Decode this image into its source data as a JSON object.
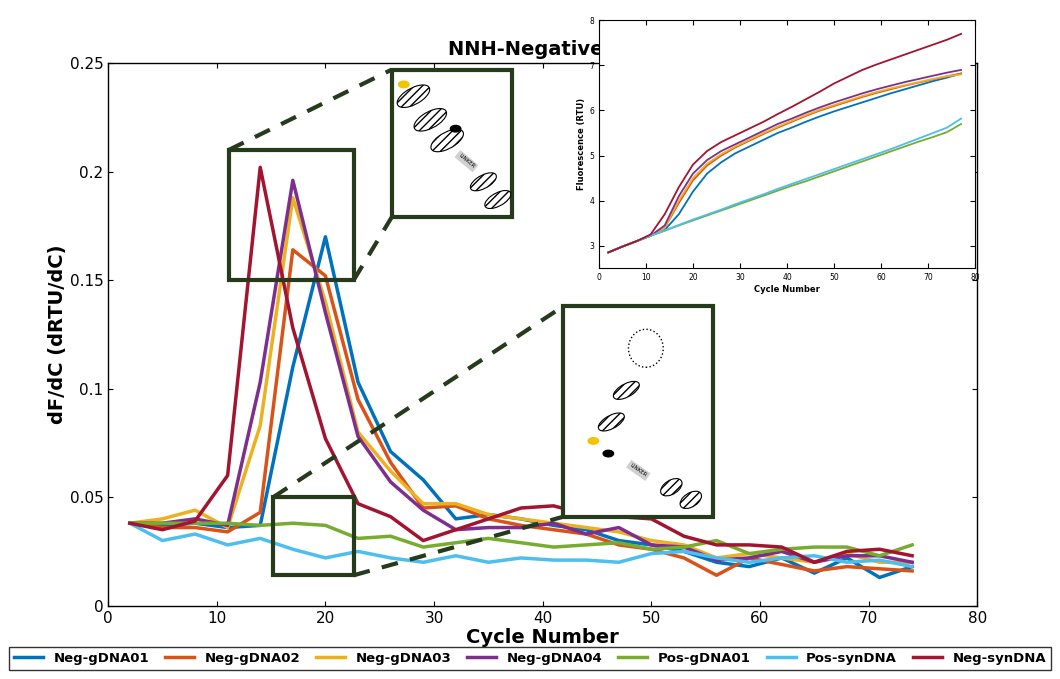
{
  "chart_data": [
    {
      "type": "line",
      "title": "NNH-Negative TP",
      "x_label": "Cycle Number",
      "y_label": "dF/dC (dRTU/dC)",
      "x": [
        2,
        5,
        8,
        11,
        14,
        17,
        20,
        23,
        26,
        29,
        32,
        35,
        38,
        41,
        44,
        47,
        50,
        53,
        56,
        59,
        62,
        65,
        68,
        71,
        74
      ],
      "xlim": [
        0,
        80
      ],
      "xticks": [
        0,
        10,
        20,
        30,
        40,
        50,
        60,
        70,
        80
      ],
      "ylim": [
        0,
        0.25
      ],
      "yticks": [
        0,
        0.05,
        0.1,
        0.15,
        0.2,
        0.25
      ],
      "grid": false,
      "legend": "lower center",
      "annotations": [
        "LINKER",
        "LINKER"
      ],
      "series": [
        {
          "name": "Neg-gDNA01",
          "color": "#0072BD",
          "values": [
            0.038,
            0.037,
            0.038,
            0.036,
            0.037,
            0.11,
            0.17,
            0.103,
            0.071,
            0.058,
            0.04,
            0.042,
            0.04,
            0.037,
            0.035,
            0.03,
            0.028,
            0.025,
            0.02,
            0.018,
            0.022,
            0.015,
            0.022,
            0.013,
            0.018
          ]
        },
        {
          "name": "Neg-gDNA02",
          "color": "#D95319",
          "values": [
            0.038,
            0.036,
            0.036,
            0.034,
            0.043,
            0.164,
            0.152,
            0.095,
            0.066,
            0.045,
            0.046,
            0.04,
            0.037,
            0.035,
            0.033,
            0.028,
            0.026,
            0.022,
            0.014,
            0.022,
            0.019,
            0.016,
            0.018,
            0.017,
            0.016
          ]
        },
        {
          "name": "Neg-gDNA03",
          "color": "#EDB120",
          "values": [
            0.038,
            0.04,
            0.044,
            0.036,
            0.083,
            0.188,
            0.14,
            0.08,
            0.062,
            0.047,
            0.047,
            0.042,
            0.04,
            0.038,
            0.036,
            0.034,
            0.03,
            0.028,
            0.022,
            0.024,
            0.022,
            0.02,
            0.024,
            0.02,
            0.02
          ]
        },
        {
          "name": "Neg-gDNA04",
          "color": "#7E2F8E",
          "values": [
            0.038,
            0.038,
            0.04,
            0.037,
            0.103,
            0.196,
            0.135,
            0.078,
            0.057,
            0.044,
            0.035,
            0.036,
            0.036,
            0.038,
            0.033,
            0.036,
            0.028,
            0.027,
            0.021,
            0.022,
            0.025,
            0.02,
            0.023,
            0.023,
            0.02
          ]
        },
        {
          "name": "Pos-gDNA01",
          "color": "#77AC30",
          "values": [
            0.038,
            0.038,
            0.038,
            0.038,
            0.037,
            0.038,
            0.037,
            0.031,
            0.032,
            0.027,
            0.029,
            0.031,
            0.029,
            0.027,
            0.028,
            0.029,
            0.026,
            0.027,
            0.03,
            0.024,
            0.026,
            0.027,
            0.027,
            0.023,
            0.028
          ]
        },
        {
          "name": "Pos-synDNA",
          "color": "#4DBEEE",
          "values": [
            0.038,
            0.03,
            0.033,
            0.028,
            0.031,
            0.026,
            0.022,
            0.025,
            0.022,
            0.02,
            0.023,
            0.02,
            0.022,
            0.021,
            0.021,
            0.02,
            0.024,
            0.025,
            0.022,
            0.02,
            0.022,
            0.023,
            0.02,
            0.021,
            0.018
          ]
        },
        {
          "name": "Neg-synDNA",
          "color": "#A2142F",
          "values": [
            0.038,
            0.035,
            0.039,
            0.06,
            0.202,
            0.128,
            0.077,
            0.047,
            0.041,
            0.03,
            0.035,
            0.04,
            0.045,
            0.046,
            0.042,
            0.041,
            0.04,
            0.032,
            0.028,
            0.028,
            0.027,
            0.02,
            0.025,
            0.026,
            0.023
          ]
        }
      ]
    },
    {
      "type": "line",
      "x_label": "Cycle Number",
      "y_label": "Fluorescence (RTU)",
      "x": [
        2,
        5,
        8,
        11,
        14,
        17,
        20,
        23,
        26,
        29,
        32,
        35,
        38,
        41,
        44,
        47,
        50,
        53,
        56,
        59,
        62,
        65,
        68,
        71,
        74,
        77
      ],
      "xlim": [
        0,
        80
      ],
      "xticks": [
        0,
        10,
        20,
        30,
        40,
        50,
        60,
        70,
        80
      ],
      "ylim": [
        2.5,
        8
      ],
      "yticks": [
        3,
        4,
        5,
        6,
        7,
        8
      ],
      "grid": false,
      "series": [
        {
          "name": "Neg-gDNA01",
          "color": "#0072BD",
          "values": [
            2.85,
            2.98,
            3.1,
            3.22,
            3.35,
            3.7,
            4.2,
            4.6,
            4.85,
            5.05,
            5.2,
            5.35,
            5.5,
            5.62,
            5.75,
            5.87,
            5.98,
            6.08,
            6.18,
            6.28,
            6.38,
            6.47,
            6.56,
            6.65,
            6.73,
            6.82
          ]
        },
        {
          "name": "Neg-gDNA02",
          "color": "#D95319",
          "values": [
            2.85,
            2.98,
            3.1,
            3.22,
            3.4,
            3.95,
            4.45,
            4.78,
            5.0,
            5.18,
            5.33,
            5.48,
            5.62,
            5.75,
            5.88,
            6.0,
            6.1,
            6.2,
            6.3,
            6.39,
            6.47,
            6.55,
            6.62,
            6.69,
            6.76,
            6.82
          ]
        },
        {
          "name": "Neg-gDNA03",
          "color": "#EDB120",
          "values": [
            2.85,
            2.98,
            3.1,
            3.22,
            3.4,
            4.0,
            4.5,
            4.82,
            5.03,
            5.2,
            5.35,
            5.5,
            5.64,
            5.77,
            5.9,
            6.02,
            6.12,
            6.22,
            6.32,
            6.41,
            6.49,
            6.56,
            6.63,
            6.7,
            6.76,
            6.8
          ]
        },
        {
          "name": "Neg-gDNA04",
          "color": "#7E2F8E",
          "values": [
            2.85,
            2.98,
            3.1,
            3.22,
            3.45,
            4.1,
            4.6,
            4.9,
            5.1,
            5.25,
            5.4,
            5.55,
            5.7,
            5.82,
            5.95,
            6.07,
            6.18,
            6.28,
            6.38,
            6.47,
            6.55,
            6.63,
            6.7,
            6.77,
            6.84,
            6.9
          ]
        },
        {
          "name": "Pos-gDNA01",
          "color": "#77AC30",
          "values": [
            2.85,
            2.98,
            3.1,
            3.22,
            3.33,
            3.45,
            3.56,
            3.67,
            3.78,
            3.89,
            4.0,
            4.11,
            4.22,
            4.33,
            4.43,
            4.54,
            4.65,
            4.76,
            4.87,
            4.98,
            5.09,
            5.2,
            5.31,
            5.41,
            5.52,
            5.7
          ]
        },
        {
          "name": "Pos-synDNA",
          "color": "#4DBEEE",
          "values": [
            2.85,
            2.98,
            3.1,
            3.22,
            3.34,
            3.46,
            3.58,
            3.69,
            3.8,
            3.92,
            4.03,
            4.14,
            4.26,
            4.37,
            4.48,
            4.59,
            4.7,
            4.81,
            4.92,
            5.03,
            5.14,
            5.26,
            5.38,
            5.5,
            5.62,
            5.82
          ]
        },
        {
          "name": "Neg-synDNA",
          "color": "#A2142F",
          "values": [
            2.85,
            2.98,
            3.1,
            3.25,
            3.7,
            4.3,
            4.8,
            5.1,
            5.3,
            5.45,
            5.6,
            5.75,
            5.92,
            6.08,
            6.25,
            6.42,
            6.6,
            6.75,
            6.9,
            7.02,
            7.13,
            7.24,
            7.35,
            7.46,
            7.57,
            7.7
          ]
        }
      ]
    }
  ]
}
